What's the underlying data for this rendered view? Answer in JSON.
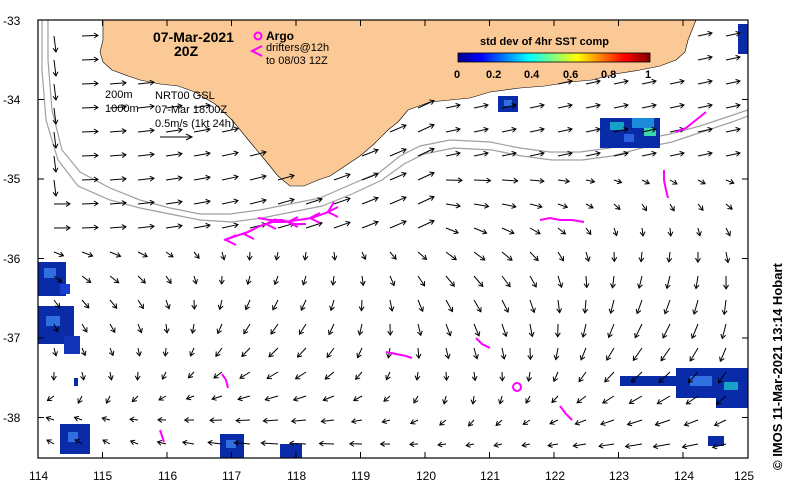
{
  "header": {
    "date": "07-Mar-2021",
    "time": "20Z"
  },
  "legend_argo": {
    "argo_label": "Argo",
    "drifters_line1": "drifters@12h",
    "drifters_line2": "to 08/03 12Z",
    "argo_color": "#ff00ff"
  },
  "colorbar": {
    "title": "std dev of 4hr SST comp",
    "ticks": [
      "0",
      "0.2",
      "0.4",
      "0.6",
      "0.8",
      "1"
    ]
  },
  "info": {
    "depth_200": "200m",
    "depth_1000": "1000m",
    "product": "NRT00 GSL",
    "product_time": "07-Mar 18:00Z",
    "scale_label": "0.5m/s (1kt 24h)"
  },
  "axes": {
    "lat_labels": [
      "-33",
      "-34",
      "-35",
      "-36",
      "-37",
      "-38"
    ],
    "lon_labels": [
      "114",
      "115",
      "116",
      "117",
      "118",
      "119",
      "120",
      "121",
      "122",
      "123",
      "124",
      "125"
    ]
  },
  "credit": "© IMOS 11-Mar-2021 13:14 Hobart",
  "colors": {
    "land": "#fbc995",
    "isobath": "#a0a0a0",
    "argo": "#ff00ff"
  }
}
